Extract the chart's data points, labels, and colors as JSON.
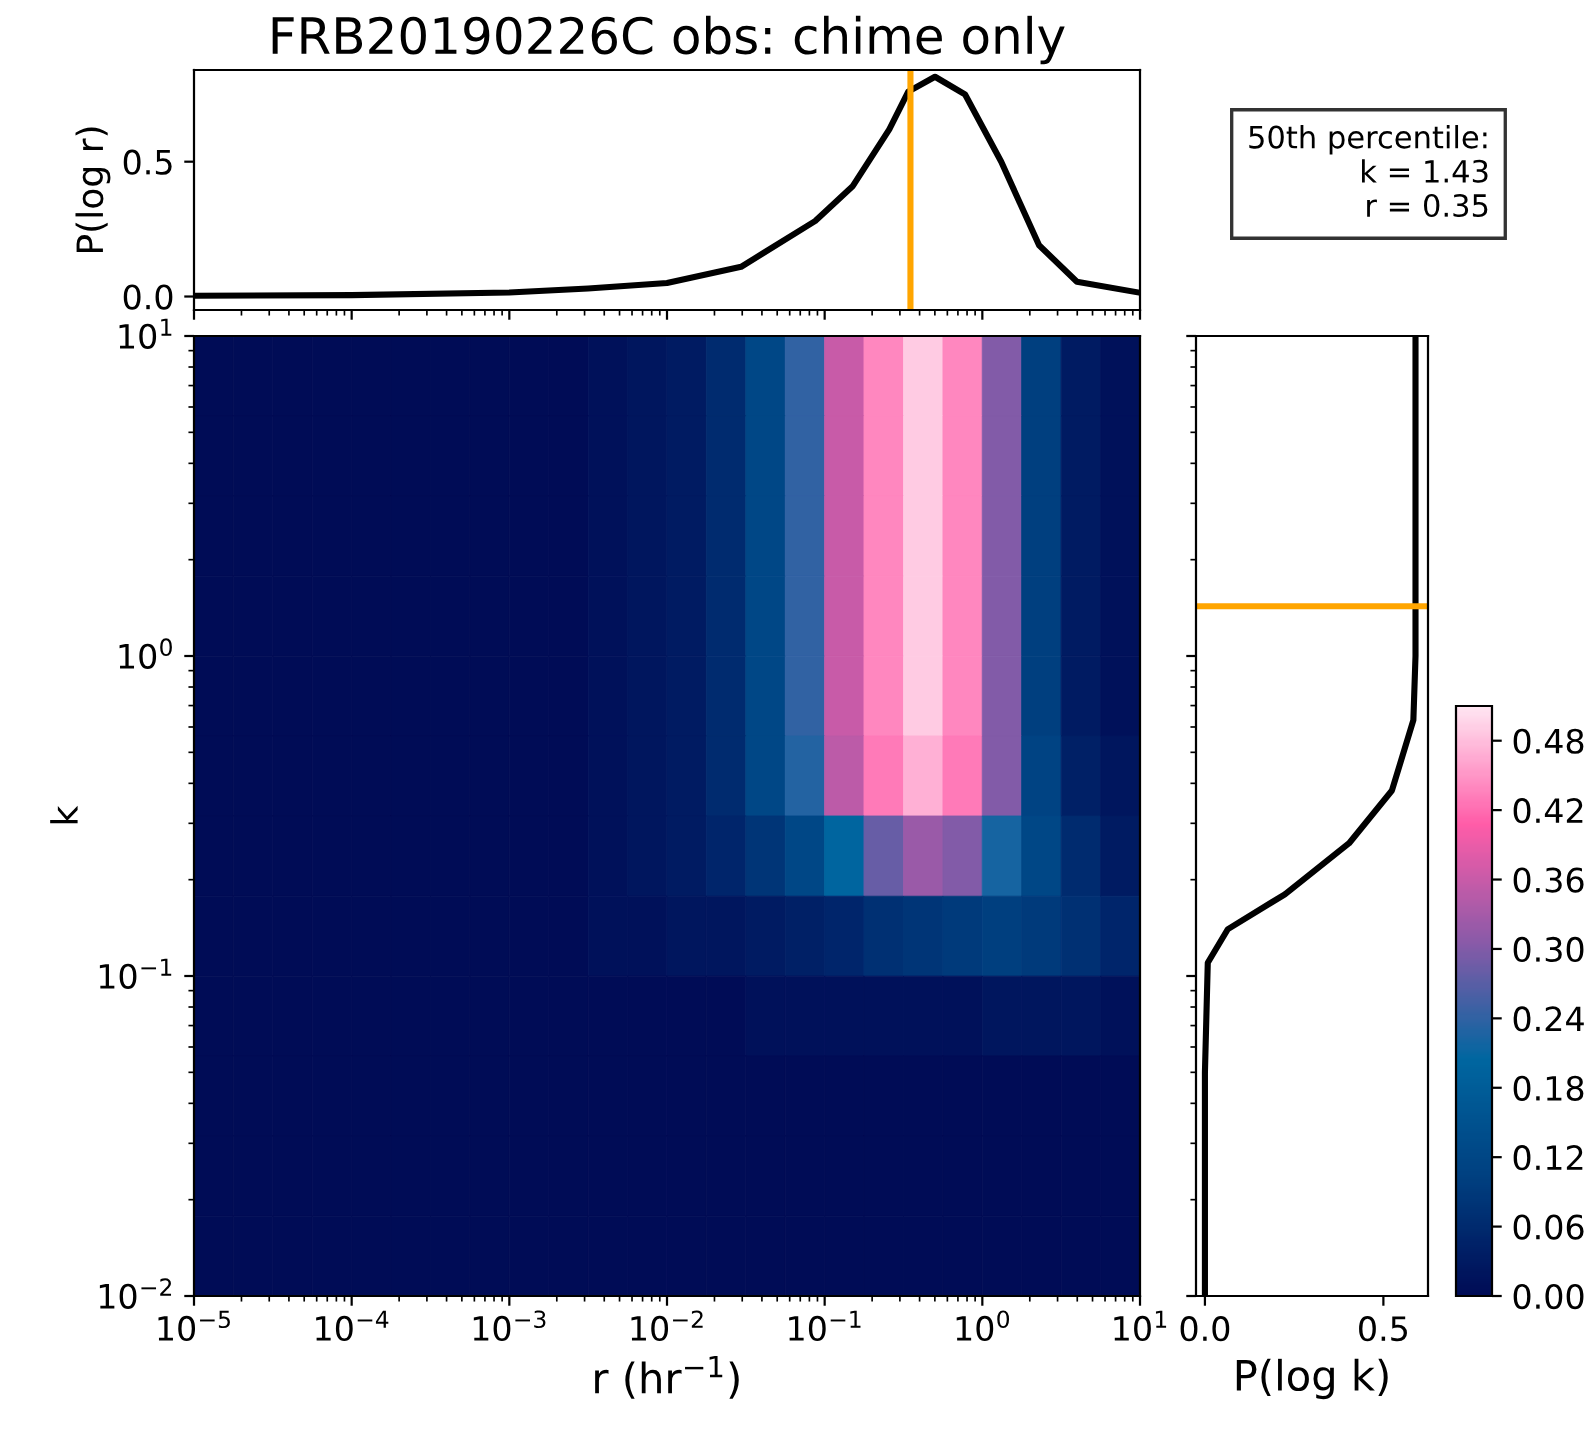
{
  "chart_data": [
    {
      "type": "line",
      "title": "FRB20190226C obs: chime only",
      "ylabel": "P(log r)",
      "annotations": [
        "50th percentile:\nk = 1.43\nr = 0.35"
      ],
      "log": "x",
      "xlim": [
        1e-05,
        10
      ],
      "xticks": [
        {
          "value": 1e-05,
          "label": null
        },
        {
          "value": 0.0001,
          "label": null
        },
        {
          "value": 0.001,
          "label": null
        },
        {
          "value": 0.01,
          "label": null
        },
        {
          "value": 0.1,
          "label": null
        },
        {
          "value": 1,
          "label": null
        },
        {
          "value": 10,
          "label": null
        }
      ],
      "ylim": [
        -0.05,
        0.84
      ],
      "yticks": [
        {
          "value": 0,
          "label": "0.0"
        },
        {
          "value": 0.5,
          "label": "0.5"
        }
      ],
      "tick_labels": "y",
      "grid": false,
      "line_style": "solid",
      "marker": "none",
      "series": [
        {
          "color": "#000000",
          "x": [
            1e-05,
            0.0001,
            0.001,
            0.00316,
            0.01,
            0.0295,
            0.0871,
            0.151,
            0.257,
            0.339,
            0.501,
            0.776,
            1.318,
            2.29,
            3.98,
            10
          ],
          "values": [
            0.003,
            0.005,
            0.015,
            0.03,
            0.05,
            0.11,
            0.28,
            0.41,
            0.62,
            0.76,
            0.815,
            0.75,
            0.5,
            0.19,
            0.055,
            0.014
          ]
        }
      ],
      "ref_lines": [
        {
          "axis": "x",
          "value": 0.35,
          "color": "#ffa500"
        }
      ]
    },
    {
      "type": "heatmap",
      "xlabel": "r (hr$^{−1}$)",
      "ylabel": "k",
      "log": "xy",
      "xlim": [
        1e-05,
        10
      ],
      "ylim": [
        0.01,
        10
      ],
      "xticks": [
        {
          "value": 1e-05,
          "label": "10$^{−5}$"
        },
        {
          "value": 0.0001,
          "label": "10$^{−4}$"
        },
        {
          "value": 0.001,
          "label": "10$^{−3}$"
        },
        {
          "value": 0.01,
          "label": "10$^{−2}$"
        },
        {
          "value": 0.1,
          "label": "10$^{−1}$"
        },
        {
          "value": 1,
          "label": "10$^{0}$"
        },
        {
          "value": 10,
          "label": "10$^{1}$"
        }
      ],
      "yticks": [
        {
          "value": 0.01,
          "label": "10$^{−2}$"
        },
        {
          "value": 0.1,
          "label": "10$^{−1}$"
        },
        {
          "value": 1,
          "label": "10$^{0}$"
        },
        {
          "value": 10,
          "label": "10$^{1}$"
        }
      ],
      "clim": [
        0,
        0.51
      ],
      "cticks": [
        {
          "value": 0,
          "label": "0.00"
        },
        {
          "value": 0.06,
          "label": "0.06"
        },
        {
          "value": 0.12,
          "label": "0.12"
        },
        {
          "value": 0.18,
          "label": "0.18"
        },
        {
          "value": 0.24,
          "label": "0.24"
        },
        {
          "value": 0.3,
          "label": "0.30"
        },
        {
          "value": 0.36,
          "label": "0.36"
        },
        {
          "value": 0.42,
          "label": "0.42"
        },
        {
          "value": 0.48,
          "label": "0.48"
        }
      ],
      "colors": [
        "#000c56",
        "#004080",
        "#0066a0",
        "#8a5aa8",
        "#ff5ca8",
        "#ffe6f2"
      ],
      "x": [
        1.33e-05,
        2.37e-05,
        4.22e-05,
        7.5e-05,
        0.000133,
        0.000237,
        0.000422,
        0.00075,
        0.00133,
        0.00237,
        0.00422,
        0.0075,
        0.0133,
        0.0237,
        0.0422,
        0.075,
        0.133,
        0.237,
        0.422,
        0.75,
        1.33,
        2.37,
        4.22,
        7.5
      ],
      "y": [
        7.5,
        4.22,
        2.37,
        1.33,
        0.75,
        0.422,
        0.237,
        0.133,
        0.075,
        0.0422,
        0.0237,
        0.0133
      ],
      "cells": [
        [
          0,
          0,
          0,
          0,
          0,
          0,
          0,
          0,
          0,
          0,
          0.01,
          0.02,
          0.03,
          0.06,
          0.12,
          0.24,
          0.36,
          0.44,
          0.49,
          0.44,
          0.3,
          0.1,
          0.03,
          0.01
        ],
        [
          0,
          0,
          0,
          0,
          0,
          0,
          0,
          0,
          0,
          0,
          0.01,
          0.02,
          0.03,
          0.06,
          0.12,
          0.24,
          0.36,
          0.44,
          0.49,
          0.44,
          0.3,
          0.1,
          0.03,
          0.01
        ],
        [
          0,
          0,
          0,
          0,
          0,
          0,
          0,
          0,
          0,
          0,
          0.01,
          0.02,
          0.03,
          0.06,
          0.12,
          0.24,
          0.36,
          0.44,
          0.49,
          0.44,
          0.3,
          0.1,
          0.03,
          0.01
        ],
        [
          0,
          0,
          0,
          0,
          0,
          0,
          0,
          0,
          0,
          0,
          0.01,
          0.02,
          0.03,
          0.06,
          0.12,
          0.24,
          0.36,
          0.44,
          0.49,
          0.44,
          0.3,
          0.1,
          0.03,
          0.01
        ],
        [
          0,
          0,
          0,
          0,
          0,
          0,
          0,
          0,
          0,
          0,
          0.01,
          0.02,
          0.03,
          0.06,
          0.12,
          0.24,
          0.36,
          0.44,
          0.49,
          0.44,
          0.3,
          0.1,
          0.03,
          0.01
        ],
        [
          0,
          0,
          0,
          0,
          0,
          0,
          0,
          0,
          0,
          0,
          0.01,
          0.02,
          0.03,
          0.06,
          0.12,
          0.23,
          0.35,
          0.43,
          0.47,
          0.43,
          0.3,
          0.11,
          0.04,
          0.02
        ],
        [
          0,
          0,
          0,
          0,
          0,
          0,
          0,
          0,
          0,
          0,
          0.01,
          0.02,
          0.03,
          0.05,
          0.08,
          0.12,
          0.2,
          0.28,
          0.32,
          0.3,
          0.22,
          0.12,
          0.06,
          0.03
        ],
        [
          0,
          0,
          0,
          0,
          0,
          0,
          0,
          0,
          0,
          0,
          0.01,
          0.01,
          0.02,
          0.02,
          0.03,
          0.04,
          0.05,
          0.07,
          0.08,
          0.09,
          0.1,
          0.09,
          0.07,
          0.05
        ],
        [
          0,
          0,
          0,
          0,
          0,
          0,
          0,
          0,
          0,
          0,
          0,
          0,
          0,
          0,
          0.01,
          0.01,
          0.01,
          0.01,
          0.01,
          0.01,
          0.02,
          0.02,
          0.02,
          0.01
        ],
        [
          0,
          0,
          0,
          0,
          0,
          0,
          0,
          0,
          0,
          0,
          0,
          0,
          0,
          0,
          0,
          0,
          0,
          0,
          0,
          0,
          0,
          0,
          0,
          0
        ],
        [
          0,
          0,
          0,
          0,
          0,
          0,
          0,
          0,
          0,
          0,
          0,
          0,
          0,
          0,
          0,
          0,
          0,
          0,
          0,
          0,
          0,
          0,
          0,
          0
        ],
        [
          0,
          0,
          0,
          0,
          0,
          0,
          0,
          0,
          0,
          0,
          0,
          0,
          0,
          0,
          0,
          0,
          0,
          0,
          0,
          0,
          0,
          0,
          0,
          0
        ]
      ]
    },
    {
      "type": "line",
      "xlabel": "P(log k)",
      "log": "y",
      "xlim": [
        -0.025,
        0.625
      ],
      "xticks": [
        {
          "value": 0,
          "label": "0.0"
        },
        {
          "value": 0.5,
          "label": "0.5"
        }
      ],
      "ylim": [
        0.01,
        10
      ],
      "yticks": [
        {
          "value": 0.01,
          "label": null
        },
        {
          "value": 0.1,
          "label": null
        },
        {
          "value": 1,
          "label": null
        },
        {
          "value": 10,
          "label": null
        }
      ],
      "tick_labels": "x",
      "grid": false,
      "line_style": "solid",
      "marker": "none",
      "series": [
        {
          "color": "#000000",
          "x": [
            0.0,
            0.0,
            0.008,
            0.064,
            0.224,
            0.404,
            0.524,
            0.584,
            0.59,
            0.59
          ],
          "values": [
            0.01,
            0.05,
            0.11,
            0.14,
            0.18,
            0.26,
            0.38,
            0.63,
            1,
            10
          ]
        }
      ],
      "ref_lines": [
        {
          "axis": "y",
          "value": 1.43,
          "color": "#ffa500"
        }
      ]
    }
  ]
}
